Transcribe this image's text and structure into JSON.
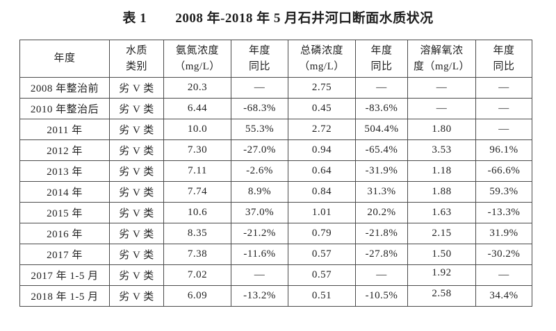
{
  "title": {
    "label": "表 1",
    "text": "2008 年-2018 年 5 月石井河口断面水质状况"
  },
  "table": {
    "display_headers": [
      "年度",
      "水质\n类别",
      "氨氮浓度\n（mg/L）",
      "年度\n同比",
      "总磷浓度\n（mg/L）",
      "年度\n同比",
      "溶解氧浓\n度（mg/L）",
      "年度\n同比"
    ],
    "missing_value_mark": "—"
  },
  "chart_data": {
    "type": "table",
    "title": "表 1 2008 年-2018 年 5 月石井河口断面水质状况",
    "columns": [
      "年度",
      "水质类别",
      "氨氮浓度（mg/L）",
      "年度同比",
      "总磷浓度（mg/L）",
      "年度同比",
      "溶解氧浓度（mg/L）",
      "年度同比"
    ],
    "rows": [
      [
        "2008 年整治前",
        "劣 V 类",
        "20.3",
        "—",
        "2.75",
        "—",
        "—",
        "—"
      ],
      [
        "2010 年整治后",
        "劣 V 类",
        "6.44",
        "-68.3%",
        "0.45",
        "-83.6%",
        "—",
        "—"
      ],
      [
        "2011 年",
        "劣 V 类",
        "10.0",
        "55.3%",
        "2.72",
        "504.4%",
        "1.80",
        "—"
      ],
      [
        "2012 年",
        "劣 V 类",
        "7.30",
        "-27.0%",
        "0.94",
        "-65.4%",
        "3.53",
        "96.1%"
      ],
      [
        "2013 年",
        "劣 V 类",
        "7.11",
        "-2.6%",
        "0.64",
        "-31.9%",
        "1.18",
        "-66.6%"
      ],
      [
        "2014 年",
        "劣 V 类",
        "7.74",
        "8.9%",
        "0.84",
        "31.3%",
        "1.88",
        "59.3%"
      ],
      [
        "2015 年",
        "劣 V 类",
        "10.6",
        "37.0%",
        "1.01",
        "20.2%",
        "1.63",
        "-13.3%"
      ],
      [
        "2016 年",
        "劣 V 类",
        "8.35",
        "-21.2%",
        "0.79",
        "-21.8%",
        "2.15",
        "31.9%"
      ],
      [
        "2017 年",
        "劣 V 类",
        "7.38",
        "-11.6%",
        "0.57",
        "-27.8%",
        "1.50",
        "-30.2%"
      ],
      [
        "2017 年 1-5 月",
        "劣 V 类",
        "7.02",
        "—",
        "0.57",
        "—",
        "1.92",
        "—"
      ],
      [
        "2018 年 1-5 月",
        "劣 V 类",
        "6.09",
        "-13.2%",
        "0.51",
        "-10.5%",
        "2.58",
        "34.4%"
      ]
    ]
  },
  "colors": {
    "background": "#ffffff",
    "text": "#1f1f1f",
    "border": "#4a4a4a"
  }
}
